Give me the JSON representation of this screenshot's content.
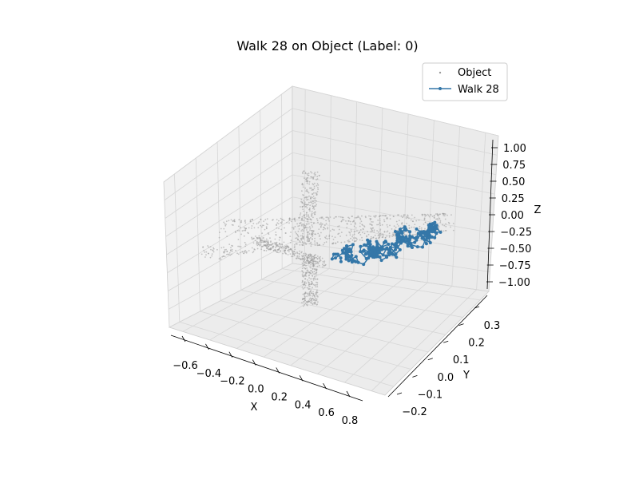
{
  "chart_data": {
    "type": "scatter",
    "projection": "3d",
    "title": "Walk 28 on Object (Label: 0)",
    "xlabel": "X",
    "ylabel": "Y",
    "zlabel": "Z",
    "xlim": [
      -0.7,
      0.9
    ],
    "ylim": [
      -0.25,
      0.38
    ],
    "zlim": [
      -1.0,
      1.0
    ],
    "x_ticks": [
      "−0.6",
      "−0.4",
      "−0.2",
      "0.0",
      "0.2",
      "0.4",
      "0.6",
      "0.8"
    ],
    "y_ticks": [
      "−0.2",
      "−0.1",
      "0.0",
      "0.1",
      "0.2",
      "0.3"
    ],
    "z_ticks": [
      "−1.00",
      "−0.75",
      "−0.50",
      "−0.25",
      "0.00",
      "0.25",
      "0.50",
      "0.75",
      "1.00"
    ],
    "legend_position": "top-right",
    "series": [
      {
        "name": "Object",
        "kind": "scatter",
        "color": "#9a9a9a",
        "shape": "airplane",
        "points": [
          {
            "x": -0.6,
            "y": -0.05,
            "z": -0.1
          },
          {
            "x": -0.4,
            "y": 0.0,
            "z": 0.05
          },
          {
            "x": -0.2,
            "y": 0.05,
            "z": 0.05
          },
          {
            "x": 0.0,
            "y": 0.05,
            "z": 0.0
          },
          {
            "x": 0.2,
            "y": 0.05,
            "z": -0.05
          },
          {
            "x": 0.4,
            "y": 0.1,
            "z": -0.1
          },
          {
            "x": 0.6,
            "y": 0.2,
            "z": -0.05
          },
          {
            "x": 0.8,
            "y": 0.3,
            "z": 0.0
          },
          {
            "x": -0.1,
            "y": 0.3,
            "z": 0.8
          },
          {
            "x": -0.1,
            "y": -0.2,
            "z": -0.9
          }
        ]
      },
      {
        "name": "Walk 28",
        "kind": "line",
        "color": "#3477a8",
        "points": [
          {
            "x": 0.35,
            "y": 0.05,
            "z": -0.4
          },
          {
            "x": 0.45,
            "y": 0.1,
            "z": -0.45
          },
          {
            "x": 0.55,
            "y": 0.15,
            "z": -0.4
          },
          {
            "x": 0.65,
            "y": 0.2,
            "z": -0.35
          },
          {
            "x": 0.75,
            "y": 0.25,
            "z": -0.25
          },
          {
            "x": 0.7,
            "y": 0.2,
            "z": -0.45
          },
          {
            "x": 0.55,
            "y": 0.12,
            "z": -0.5
          },
          {
            "x": 0.4,
            "y": 0.08,
            "z": -0.35
          },
          {
            "x": 0.6,
            "y": 0.18,
            "z": -0.3
          },
          {
            "x": 0.8,
            "y": 0.28,
            "z": -0.2
          }
        ]
      }
    ]
  }
}
